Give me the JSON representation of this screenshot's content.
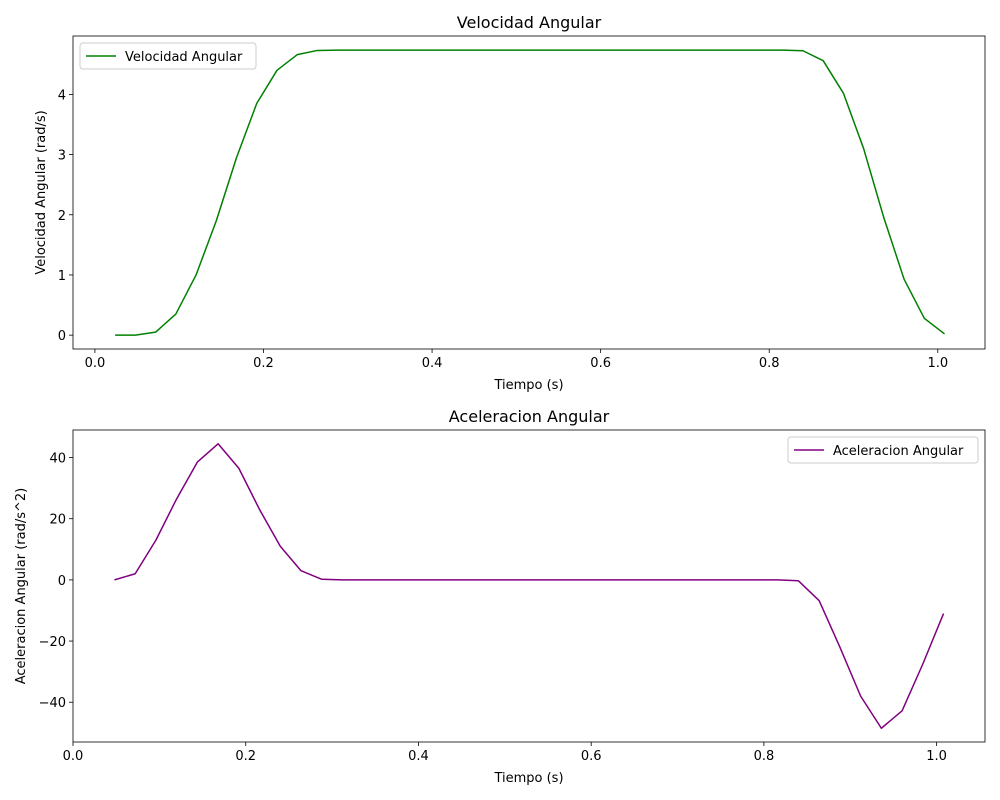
{
  "chart_data": [
    {
      "type": "line",
      "title": "Velocidad Angular",
      "xlabel": "Tiempo (s)",
      "ylabel": "Velocidad Angular (rad/s)",
      "xlim": [
        -0.026,
        1.056
      ],
      "ylim": [
        -0.23,
        4.97
      ],
      "xticks": [
        0.0,
        0.2,
        0.4,
        0.6,
        0.8,
        1.0
      ],
      "xtick_labels": [
        "0.0",
        "0.2",
        "0.4",
        "0.6",
        "0.8",
        "1.0"
      ],
      "yticks": [
        0,
        1,
        2,
        3,
        4
      ],
      "ytick_labels": [
        "0",
        "1",
        "2",
        "3",
        "4"
      ],
      "legend_position": "upper-left",
      "grid": false,
      "series": [
        {
          "name": "Velocidad Angular",
          "color": "#008000",
          "x": [
            0.024,
            0.048,
            0.072,
            0.096,
            0.12,
            0.144,
            0.168,
            0.192,
            0.216,
            0.24,
            0.264,
            0.288,
            0.312,
            0.336,
            0.36,
            0.384,
            0.408,
            0.432,
            0.456,
            0.48,
            0.504,
            0.528,
            0.552,
            0.576,
            0.6,
            0.624,
            0.648,
            0.672,
            0.696,
            0.72,
            0.744,
            0.768,
            0.792,
            0.816,
            0.84,
            0.864,
            0.888,
            0.912,
            0.936,
            0.96,
            0.984,
            1.008
          ],
          "y": [
            0.0,
            0.0,
            0.05,
            0.35,
            1.0,
            1.9,
            2.95,
            3.85,
            4.4,
            4.66,
            4.73,
            4.735,
            4.735,
            4.735,
            4.735,
            4.735,
            4.735,
            4.735,
            4.735,
            4.735,
            4.735,
            4.735,
            4.735,
            4.735,
            4.735,
            4.735,
            4.735,
            4.735,
            4.735,
            4.735,
            4.735,
            4.735,
            4.735,
            4.735,
            4.725,
            4.56,
            4.02,
            3.1,
            1.95,
            0.93,
            0.28,
            0.02
          ]
        }
      ]
    },
    {
      "type": "line",
      "title": "Aceleracion Angular",
      "xlabel": "Tiempo (s)",
      "ylabel": "Aceleracion Angular (rad/s^2)",
      "xlim": [
        0.0,
        1.056
      ],
      "ylim": [
        -53.0,
        49.0
      ],
      "xticks": [
        0.0,
        0.2,
        0.4,
        0.6,
        0.8,
        1.0
      ],
      "xtick_labels": [
        "0.0",
        "0.2",
        "0.4",
        "0.6",
        "0.8",
        "1.0"
      ],
      "yticks": [
        -40,
        -20,
        0,
        20,
        40
      ],
      "ytick_labels": [
        "−40",
        "−20",
        "0",
        "20",
        "40"
      ],
      "legend_position": "upper-right",
      "grid": false,
      "series": [
        {
          "name": "Aceleracion Angular",
          "color": "#800080",
          "x": [
            0.048,
            0.072,
            0.096,
            0.12,
            0.144,
            0.168,
            0.192,
            0.216,
            0.24,
            0.264,
            0.288,
            0.312,
            0.336,
            0.36,
            0.384,
            0.408,
            0.432,
            0.456,
            0.48,
            0.504,
            0.528,
            0.552,
            0.576,
            0.6,
            0.624,
            0.648,
            0.672,
            0.696,
            0.72,
            0.744,
            0.768,
            0.792,
            0.816,
            0.84,
            0.864,
            0.888,
            0.912,
            0.936,
            0.96,
            0.984,
            1.008
          ],
          "y": [
            0.0,
            2.0,
            13.0,
            26.5,
            38.5,
            44.5,
            36.5,
            23.0,
            11.0,
            3.0,
            0.2,
            0.0,
            0.0,
            0.0,
            0.0,
            0.0,
            0.0,
            0.0,
            0.0,
            0.0,
            0.0,
            0.0,
            0.0,
            0.0,
            0.0,
            0.0,
            0.0,
            0.0,
            0.0,
            0.0,
            0.0,
            0.0,
            0.0,
            -0.3,
            -6.8,
            -22.0,
            -38.0,
            -48.5,
            -42.8,
            -27.5,
            -11.0
          ]
        }
      ]
    }
  ]
}
